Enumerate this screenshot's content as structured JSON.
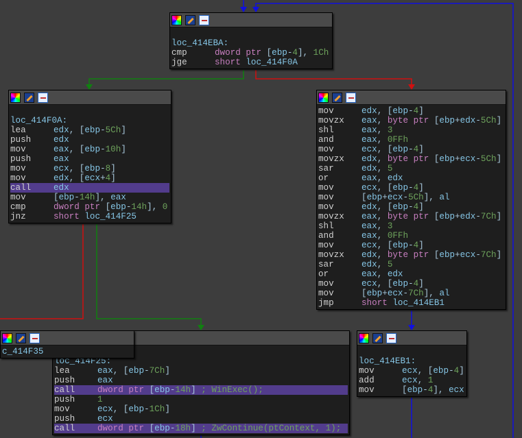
{
  "blocks": [
    {
      "id": "loc_414EBA",
      "label": "loc_414EBA:",
      "lines": [
        [
          "cmp",
          "dword ptr [ebp-4], 1Ch"
        ],
        [
          "jge",
          "short loc_414F0A"
        ]
      ]
    },
    {
      "id": "loc_414F0A",
      "label": "loc_414F0A:",
      "lines": [
        [
          "lea",
          "edx, [ebp-5Ch]"
        ],
        [
          "push",
          "edx"
        ],
        [
          "mov",
          "eax, [ebp-10h]"
        ],
        [
          "push",
          "eax"
        ],
        [
          "mov",
          "ecx, [ebp-8]"
        ],
        [
          "mov",
          "edx, [ecx+4]"
        ],
        [
          "call",
          "edx",
          true
        ],
        [
          "mov",
          "[ebp-14h], eax"
        ],
        [
          "cmp",
          "dword ptr [ebp-14h], 0"
        ],
        [
          "jnz",
          "short loc_414F25"
        ]
      ]
    },
    {
      "id": "loop_body",
      "label": "",
      "lines": [
        [
          "mov",
          "edx, [ebp-4]"
        ],
        [
          "movzx",
          "eax, byte ptr [ebp+edx-5Ch]"
        ],
        [
          "shl",
          "eax, 3"
        ],
        [
          "and",
          "eax, 0FFh"
        ],
        [
          "mov",
          "ecx, [ebp-4]"
        ],
        [
          "movzx",
          "edx, byte ptr [ebp+ecx-5Ch]"
        ],
        [
          "sar",
          "edx, 5"
        ],
        [
          "or",
          "eax, edx"
        ],
        [
          "mov",
          "ecx, [ebp-4]"
        ],
        [
          "mov",
          "[ebp+ecx-5Ch], al"
        ],
        [
          "mov",
          "edx, [ebp-4]"
        ],
        [
          "movzx",
          "eax, byte ptr [ebp+edx-7Ch]"
        ],
        [
          "shl",
          "eax, 3"
        ],
        [
          "and",
          "eax, 0FFh"
        ],
        [
          "mov",
          "ecx, [ebp-4]"
        ],
        [
          "movzx",
          "edx, byte ptr [ebp+ecx-7Ch]"
        ],
        [
          "sar",
          "edx, 5"
        ],
        [
          "or",
          "eax, edx"
        ],
        [
          "mov",
          "ecx, [ebp-4]"
        ],
        [
          "mov",
          "[ebp+ecx-7Ch], al"
        ],
        [
          "jmp",
          "short loc_414EB1"
        ]
      ]
    },
    {
      "id": "loc_414F25",
      "label": "loc_414F25:",
      "lines": [
        [
          "lea",
          "eax, [ebp-7Ch]"
        ],
        [
          "push",
          "eax"
        ],
        [
          "call",
          "dword ptr [ebp-14h] ; WinExec();",
          true
        ],
        [
          "push",
          "1"
        ],
        [
          "mov",
          "ecx, [ebp-1Ch]"
        ],
        [
          "push",
          "ecx"
        ],
        [
          "call",
          "dword ptr [ebp-18h] ; ZwContinue(ptContext, 1);",
          true
        ]
      ]
    },
    {
      "id": "loc_414EB1",
      "label": "loc_414EB1:",
      "lines": [
        [
          "mov",
          "ecx, [ebp-4]"
        ],
        [
          "add",
          "ecx, 1"
        ],
        [
          "mov",
          "[ebp-4], ecx"
        ]
      ]
    },
    {
      "id": "loc_414F35",
      "label": "",
      "lines": [
        [
          "",
          "c_414F35"
        ]
      ]
    }
  ],
  "colors": {
    "true_edge": "#108010",
    "false_edge": "#d01010",
    "jump_edge": "#1010e0",
    "highlight": "#523c8c"
  }
}
